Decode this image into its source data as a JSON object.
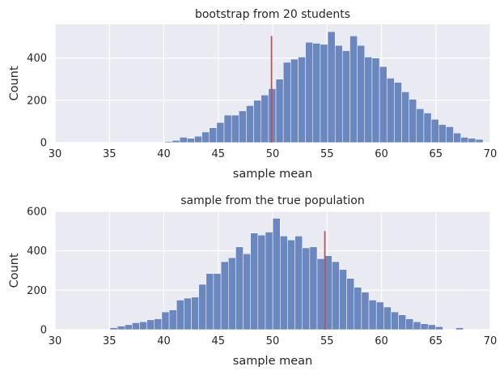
{
  "chart_data": [
    {
      "type": "bar",
      "title": "bootstrap from 20 students",
      "xlabel": "sample mean",
      "ylabel": "Count",
      "xlim": [
        30,
        70
      ],
      "ylim": [
        0,
        560
      ],
      "xticks": [
        "30",
        "35",
        "40",
        "45",
        "50",
        "55",
        "60",
        "65",
        "70"
      ],
      "yticks": [
        "0",
        "200",
        "400"
      ],
      "grid": true,
      "bin_width": 0.68,
      "x": [
        40.1,
        40.78,
        41.46,
        42.14,
        42.82,
        43.5,
        44.18,
        44.86,
        45.54,
        46.22,
        46.9,
        47.58,
        48.26,
        48.94,
        49.62,
        50.3,
        50.98,
        51.66,
        52.34,
        53.02,
        53.7,
        54.38,
        55.06,
        55.74,
        56.42,
        57.1,
        57.78,
        58.46,
        59.14,
        59.82,
        60.5,
        61.18,
        61.86,
        62.54,
        63.22,
        63.9,
        64.58,
        65.26,
        65.94,
        66.62,
        67.3,
        67.98,
        68.66
      ],
      "values": [
        5,
        10,
        25,
        20,
        30,
        50,
        70,
        95,
        130,
        130,
        150,
        175,
        200,
        225,
        255,
        300,
        380,
        395,
        405,
        475,
        470,
        465,
        525,
        460,
        435,
        505,
        460,
        405,
        400,
        360,
        305,
        285,
        240,
        205,
        160,
        140,
        110,
        85,
        75,
        45,
        25,
        20,
        15
      ],
      "vline": 49.9,
      "vline_top": 505
    },
    {
      "type": "bar",
      "title": "sample from the true population",
      "xlabel": "sample mean",
      "ylabel": "Count",
      "xlim": [
        30,
        70
      ],
      "ylim": [
        0,
        600
      ],
      "xticks": [
        "30",
        "35",
        "40",
        "45",
        "50",
        "55",
        "60",
        "65",
        "70"
      ],
      "yticks": [
        "0",
        "200",
        "400",
        "600"
      ],
      "grid": true,
      "bin_width": 0.68,
      "x": [
        35.05,
        35.73,
        36.41,
        37.09,
        37.77,
        38.45,
        39.13,
        39.81,
        40.49,
        41.17,
        41.85,
        42.53,
        43.21,
        43.89,
        44.57,
        45.25,
        45.93,
        46.61,
        47.29,
        47.97,
        48.65,
        49.33,
        50.01,
        50.69,
        51.37,
        52.05,
        52.73,
        53.41,
        54.09,
        54.77,
        55.45,
        56.13,
        56.81,
        57.49,
        58.17,
        58.85,
        59.53,
        60.21,
        60.89,
        61.57,
        62.25,
        62.93,
        63.61,
        64.29,
        64.97,
        66.84
      ],
      "values": [
        10,
        18,
        25,
        35,
        40,
        50,
        55,
        90,
        100,
        150,
        160,
        165,
        230,
        285,
        285,
        345,
        365,
        420,
        385,
        490,
        480,
        495,
        565,
        475,
        455,
        475,
        415,
        420,
        360,
        375,
        345,
        305,
        260,
        215,
        190,
        150,
        140,
        115,
        90,
        75,
        55,
        40,
        30,
        25,
        15,
        10
      ],
      "vline": 54.8,
      "vline_top": 500
    }
  ]
}
